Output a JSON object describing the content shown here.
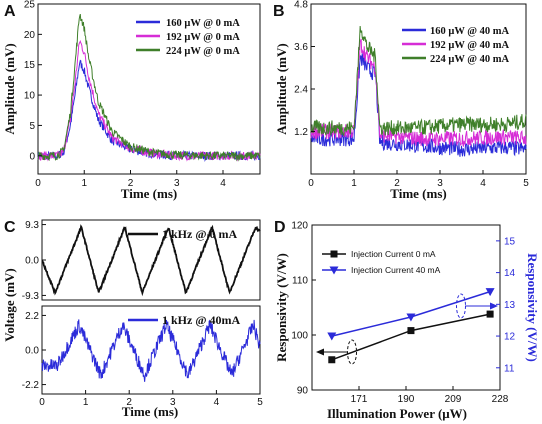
{
  "chart_data": [
    {
      "panel": "A",
      "type": "line",
      "xlabel": "Time (ms)",
      "ylabel": "Amplitude (mV)",
      "xlim": [
        0,
        4.8
      ],
      "ylim": [
        -3,
        25
      ],
      "xticks": [
        0,
        1,
        2,
        3,
        4
      ],
      "yticks": [
        0,
        5,
        10,
        15,
        20,
        25
      ],
      "legend": "top-right",
      "series": [
        {
          "name": "160 μW @ 0 mA",
          "color": "#2b2bd9",
          "x": [
            0,
            0.4,
            0.55,
            0.7,
            0.8,
            0.9,
            1.0,
            1.1,
            1.3,
            1.6,
            2.0,
            2.5,
            3.0,
            4.0,
            4.8
          ],
          "y": [
            0,
            0,
            0.5,
            5,
            10,
            15.5,
            14,
            11,
            6,
            2.5,
            1,
            0.3,
            0,
            0,
            0
          ]
        },
        {
          "name": "192 μW @ 0 mA",
          "color": "#d62dd6",
          "x": [
            0,
            0.4,
            0.55,
            0.7,
            0.8,
            0.9,
            1.0,
            1.1,
            1.3,
            1.6,
            2.0,
            2.5,
            3.0,
            4.0,
            4.8
          ],
          "y": [
            0,
            0,
            0.6,
            6,
            12,
            19,
            17,
            13,
            7,
            3,
            1.2,
            0.4,
            0,
            0,
            0
          ]
        },
        {
          "name": "224 μW @ 0 mA",
          "color": "#3f7f2a",
          "x": [
            0,
            0.4,
            0.55,
            0.7,
            0.8,
            0.9,
            1.0,
            1.1,
            1.3,
            1.6,
            2.0,
            2.5,
            3.0,
            4.0,
            4.8
          ],
          "y": [
            0,
            0,
            0.8,
            7,
            15,
            23.5,
            21,
            16,
            9,
            4,
            1.5,
            0.5,
            0.1,
            0,
            0
          ]
        }
      ]
    },
    {
      "panel": "B",
      "type": "line",
      "xlabel": "Time (ms)",
      "ylabel": "Amplitude (mV)",
      "xlim": [
        0,
        5
      ],
      "ylim": [
        0,
        4.8
      ],
      "xticks": [
        0,
        1,
        2,
        3,
        4,
        5
      ],
      "yticks": [
        1.2,
        2.4,
        3.6,
        4.8
      ],
      "legend": "top-right",
      "series": [
        {
          "name": "160 μW @ 40 mA",
          "color": "#2b2bd9",
          "x": [
            0,
            1.0,
            1.1,
            1.15,
            1.3,
            1.5,
            1.6,
            2.5,
            3.5,
            4.5,
            5.0
          ],
          "y": [
            1.0,
            1.0,
            2.6,
            3.3,
            3.0,
            2.8,
            0.9,
            0.8,
            0.7,
            0.75,
            0.7
          ]
        },
        {
          "name": "192 μW @ 40 mA",
          "color": "#d62dd6",
          "x": [
            0,
            1.0,
            1.1,
            1.15,
            1.3,
            1.5,
            1.6,
            2.5,
            3.5,
            4.5,
            5.0
          ],
          "y": [
            1.2,
            1.2,
            2.9,
            3.7,
            3.3,
            3.0,
            1.1,
            1.0,
            1.0,
            1.05,
            1.0
          ]
        },
        {
          "name": "224 μW @ 40 mA",
          "color": "#3f7f2a",
          "x": [
            0,
            1.0,
            1.1,
            1.15,
            1.3,
            1.5,
            1.6,
            2.5,
            3.5,
            4.5,
            5.0
          ],
          "y": [
            1.3,
            1.3,
            3.2,
            4.2,
            3.6,
            3.3,
            1.3,
            1.3,
            1.4,
            1.4,
            1.5
          ]
        }
      ]
    },
    {
      "panel": "C",
      "type": "line",
      "xlabel": "Time (ms)",
      "ylabel": "Voltage (mV)",
      "xlim": [
        0,
        5
      ],
      "xticks": [
        0,
        1,
        2,
        3,
        4,
        5
      ],
      "subplots": [
        {
          "ylim": [
            -10.5,
            10.5
          ],
          "yticks": [
            -9.3,
            0.0,
            9.3
          ],
          "series": [
            {
              "name": "1 kHz @ 0 mA",
              "color": "#111111",
              "x": [
                0,
                0.3,
                0.9,
                1.3,
                1.9,
                2.3,
                2.9,
                3.3,
                3.9,
                4.3,
                4.9,
                5.0
              ],
              "y": [
                0,
                -8.6,
                8.6,
                -8.6,
                8.6,
                -8.6,
                8.6,
                -8.6,
                8.6,
                -8.6,
                8.6,
                7.5
              ]
            }
          ]
        },
        {
          "ylim": [
            -2.8,
            2.8
          ],
          "yticks": [
            -2.2,
            0.0,
            2.2
          ],
          "series": [
            {
              "name": "1 kHz @ 40mA",
              "color": "#2b2bd9",
              "x": [
                0,
                0.35,
                0.85,
                1.35,
                1.85,
                2.35,
                2.85,
                3.35,
                3.85,
                4.35,
                4.85,
                5.0
              ],
              "y": [
                -1.0,
                -1.0,
                1.6,
                -1.6,
                1.6,
                -1.6,
                1.6,
                -1.6,
                1.6,
                -1.6,
                1.6,
                0.2
              ]
            }
          ]
        }
      ]
    },
    {
      "panel": "D",
      "type": "line",
      "xlabel": "Illumination  Power (μW)",
      "ylabel": "Responsivity (V/W)",
      "ylabel_right": "Responsivity (V/W)",
      "xlim": [
        152,
        228
      ],
      "xticks": [
        171,
        190,
        209,
        228
      ],
      "ylim": [
        90,
        120
      ],
      "yticks": [
        90,
        100,
        110,
        120
      ],
      "ylim_right": [
        10.3,
        15.5
      ],
      "yticks_right": [
        11,
        12,
        13,
        14,
        15
      ],
      "legend": "top-left",
      "series": [
        {
          "name": "Injection Current 0 mA",
          "color": "#111111",
          "marker": "square",
          "axis": "left",
          "x": [
            160,
            192,
            224
          ],
          "y": [
            95.5,
            100.8,
            103.8
          ]
        },
        {
          "name": "Injection Current 40 mA",
          "color": "#2b2bd9",
          "marker": "triangle-down",
          "axis": "right",
          "x": [
            160,
            192,
            224
          ],
          "y": [
            12.0,
            12.6,
            13.4
          ]
        }
      ]
    }
  ],
  "labels": {
    "a": "A",
    "b": "B",
    "c": "C",
    "d": "D"
  }
}
